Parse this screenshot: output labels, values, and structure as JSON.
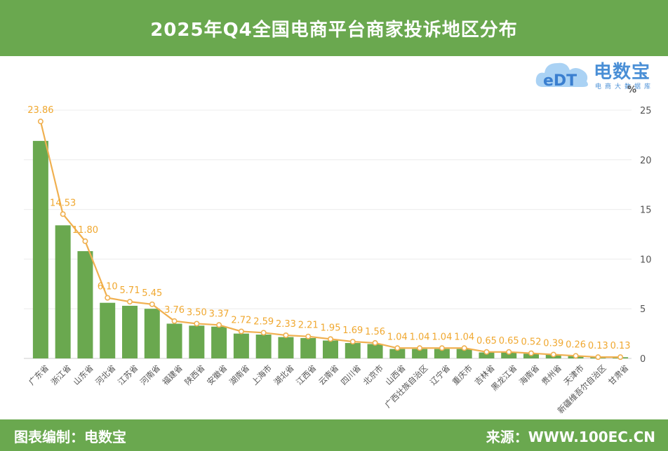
{
  "header": {
    "title": "2025年Q4全国电商平台商家投诉地区分布"
  },
  "logo": {
    "mark": "eDT",
    "name": "电数宝",
    "sub": "电商大数据库",
    "icon": "cloud-logo-icon"
  },
  "footer": {
    "left": "图表编制：电数宝",
    "right": "来源：WWW.100EC.CN"
  },
  "colors": {
    "header": "#6aa84f",
    "bar": "#6aa84f",
    "line": "#f0b050",
    "label": "#f0a830"
  },
  "chart_data": {
    "type": "bar",
    "title": "2025年Q4全国电商平台商家投诉地区分布",
    "xlabel": "",
    "ylabel": "%",
    "ylim": [
      0,
      25
    ],
    "yticks": [
      0,
      5,
      10,
      15,
      20,
      25
    ],
    "y_axis_side": "right",
    "grid": true,
    "categories": [
      "广东省",
      "浙江省",
      "山东省",
      "河北省",
      "江苏省",
      "河南省",
      "福建省",
      "陕西省",
      "安徽省",
      "湖南省",
      "上海市",
      "湖北省",
      "江西省",
      "云南省",
      "四川省",
      "北京市",
      "山西省",
      "广西壮族自治区",
      "辽宁省",
      "重庆市",
      "吉林省",
      "黑龙江省",
      "海南省",
      "贵州省",
      "天津市",
      "新疆维吾尔自治区",
      "甘肃省"
    ],
    "series": [
      {
        "type": "bar",
        "values": [
          21.9,
          13.4,
          10.8,
          5.6,
          5.3,
          5.0,
          3.5,
          3.3,
          3.2,
          2.5,
          2.4,
          2.15,
          2.05,
          1.8,
          1.55,
          1.45,
          0.95,
          0.95,
          0.95,
          0.95,
          0.6,
          0.6,
          0.48,
          0.36,
          0.24,
          0.12,
          0.12
        ]
      },
      {
        "type": "line",
        "values": [
          23.86,
          14.53,
          11.8,
          6.1,
          5.71,
          5.45,
          3.76,
          3.5,
          3.37,
          2.72,
          2.59,
          2.33,
          2.21,
          1.95,
          1.69,
          1.56,
          1.04,
          1.04,
          1.04,
          1.04,
          0.65,
          0.65,
          0.52,
          0.39,
          0.26,
          0.13,
          0.13
        ],
        "labels": [
          "23.86",
          "14.53",
          "11.80",
          "6.10",
          "5.71",
          "5.45",
          "3.76",
          "3.50",
          "3.37",
          "2.72",
          "2.59",
          "2.33",
          "2.21",
          "1.95",
          "1.69",
          "1.56",
          "1.04",
          "1.04",
          "1.04",
          "1.04",
          "0.65",
          "0.65",
          "0.52",
          "0.39",
          "0.26",
          "0.13",
          "0.13"
        ]
      }
    ]
  }
}
